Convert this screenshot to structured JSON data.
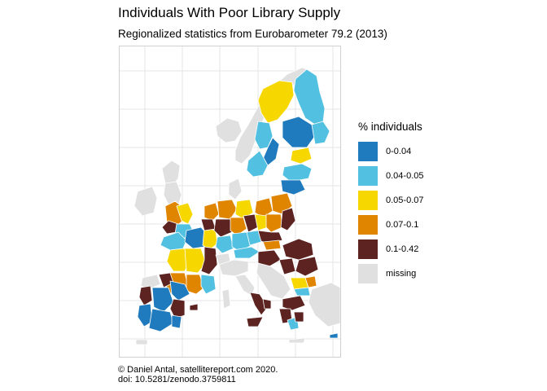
{
  "header": {
    "title": "Individuals With Poor Library Supply",
    "subtitle": "Regionalized statistics from Eurobarometer 79.2 (2013)"
  },
  "legend": {
    "title": "% individuals",
    "items": [
      {
        "label": "0-0.04",
        "color": "#1f7bbd"
      },
      {
        "label": "0.04-0.05",
        "color": "#52c1e1"
      },
      {
        "label": "0.05-0.07",
        "color": "#f6d800"
      },
      {
        "label": "0.07-0.1",
        "color": "#e08500"
      },
      {
        "label": "0.1-0.42",
        "color": "#5c2320"
      },
      {
        "label": "missing",
        "color": "#e0e0e0"
      }
    ]
  },
  "caption": {
    "line1": "© Daniel Antal, satellitereport.com 2020.",
    "line2": "doi: 10.5281/zenodo.3759811"
  },
  "colors": {
    "background": "#ffffff",
    "gridline": "#e2e2e2",
    "region_border": "#ffffff"
  }
}
